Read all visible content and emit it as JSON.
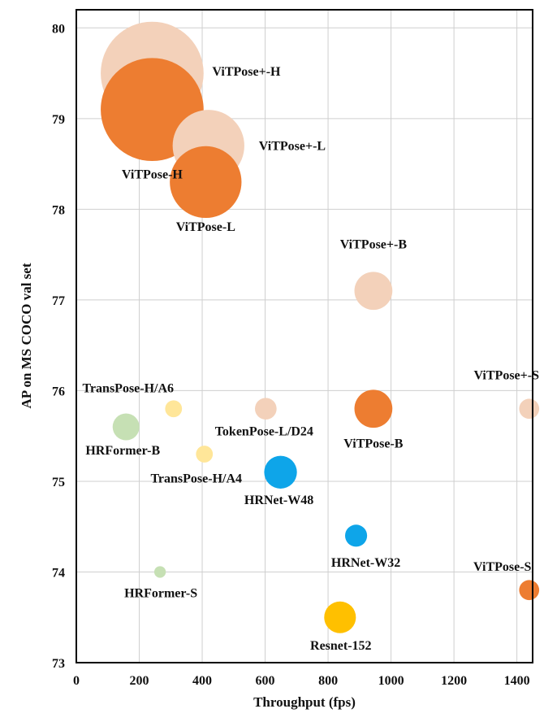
{
  "chart_data": {
    "type": "scatter",
    "xlabel": "Throughput (fps)",
    "ylabel": "AP on MS COCO val set",
    "xlim": [
      0,
      1450
    ],
    "ylim": [
      73,
      80.2
    ],
    "x_ticks": [
      "0",
      "200",
      "400",
      "600",
      "800",
      "1000",
      "1200",
      "1400"
    ],
    "y_ticks": [
      "73",
      "74",
      "75",
      "76",
      "77",
      "78",
      "79",
      "80"
    ],
    "grid": true,
    "colors": {
      "vitpose_plus": "#f3d1ba",
      "vitpose": "#ed7d31",
      "hrnet": "#0ea5e9",
      "hrformer": "#c6e0b4",
      "transpose_tokenpose": "#ffe699",
      "resnet": "#ffc000"
    },
    "points": [
      {
        "label": "ViTPose+-H",
        "x": 241,
        "y": 79.5,
        "size": 632,
        "group": "vitpose_plus"
      },
      {
        "label": "ViTPose-H",
        "x": 241,
        "y": 79.1,
        "size": 632,
        "group": "vitpose"
      },
      {
        "label": "ViTPose+-L",
        "x": 420,
        "y": 78.7,
        "size": 307,
        "group": "vitpose_plus"
      },
      {
        "label": "ViTPose-L",
        "x": 411,
        "y": 78.3,
        "size": 307,
        "group": "vitpose"
      },
      {
        "label": "ViTPose+-B",
        "x": 944,
        "y": 77.1,
        "size": 86,
        "group": "vitpose_plus"
      },
      {
        "label": "ViTPose-B",
        "x": 944,
        "y": 75.8,
        "size": 86,
        "group": "vitpose"
      },
      {
        "label": "ViTPose+-S",
        "x": 1439,
        "y": 75.8,
        "size": 24,
        "group": "vitpose_plus"
      },
      {
        "label": "ViTPose-S",
        "x": 1439,
        "y": 73.8,
        "size": 24,
        "group": "vitpose"
      },
      {
        "label": "TransPose-H/A6",
        "x": 309,
        "y": 75.8,
        "size": 17,
        "group": "transpose_tokenpose"
      },
      {
        "label": "TokenPose-L/D24",
        "x": 602,
        "y": 75.8,
        "size": 28,
        "group": "vitpose_plus"
      },
      {
        "label": "HRFormer-B",
        "x": 158,
        "y": 75.6,
        "size": 43,
        "group": "hrformer"
      },
      {
        "label": "TransPose-H/A4",
        "x": 407,
        "y": 75.3,
        "size": 17,
        "group": "transpose_tokenpose"
      },
      {
        "label": "HRNet-W48",
        "x": 649,
        "y": 75.1,
        "size": 64,
        "group": "hrnet"
      },
      {
        "label": "HRNet-W32",
        "x": 889,
        "y": 74.4,
        "size": 29,
        "group": "hrnet"
      },
      {
        "label": "HRFormer-S",
        "x": 266,
        "y": 74.0,
        "size": 8,
        "group": "hrformer"
      },
      {
        "label": "Resnet-152",
        "x": 838,
        "y": 73.5,
        "size": 60,
        "group": "resnet"
      }
    ]
  }
}
